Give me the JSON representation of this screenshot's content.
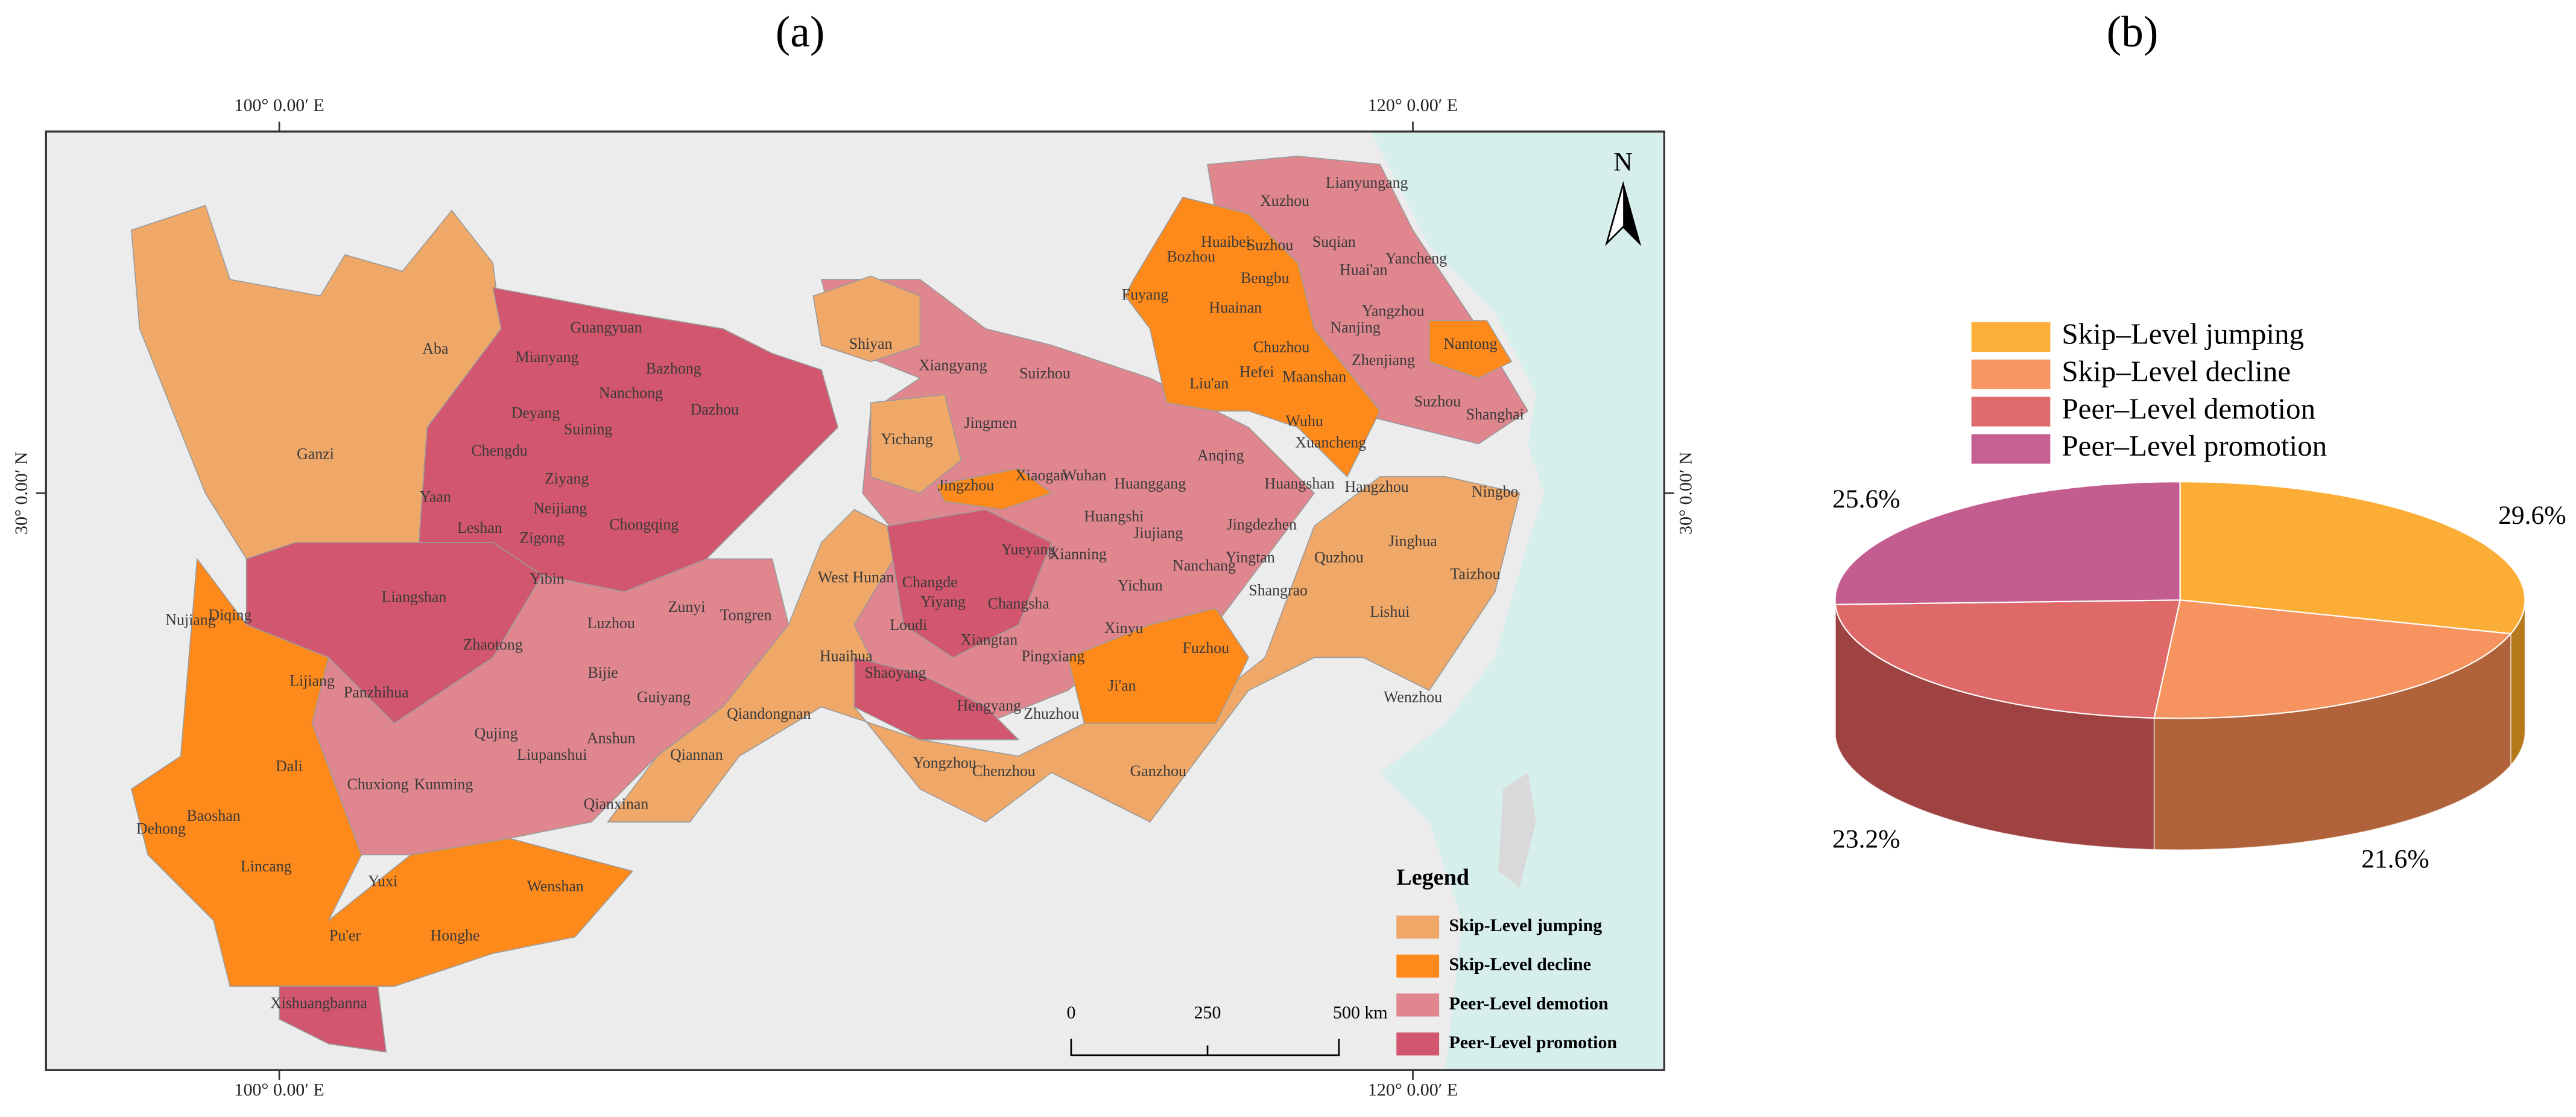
{
  "panels": {
    "a": {
      "label": "(a)",
      "lon_labels": [
        "100° 0.00′ E",
        "120° 0.00′ E"
      ],
      "lat_label": "30° 0.00′ N",
      "north": "N",
      "cities": [
        "Aba",
        "Ganzi",
        "Guangyuan",
        "Mianyang",
        "Bazhong",
        "Dazhou",
        "Nanchong",
        "Deyang",
        "Suining",
        "Chengdu",
        "Ziyang",
        "Yaan",
        "Neijiang",
        "Leshan",
        "Chongqing",
        "Zigong",
        "Yibin",
        "Liangshan",
        "Luzhou",
        "Zunyi",
        "Tongren",
        "Zhaotong",
        "Bijie",
        "Guiyang",
        "Anshun",
        "Qiannan",
        "Qiandongnan",
        "Qujing",
        "Liupanshui",
        "Kunming",
        "Chuxiong",
        "Panzhihua",
        "Lijiang",
        "Diqing",
        "Nujiang",
        "Dali",
        "Baoshan",
        "Dehong",
        "Lincang",
        "Yuxi",
        "Pu'er",
        "Honghe",
        "Wenshan",
        "Qianxinan",
        "Xishuangbanna",
        "Shiyan",
        "Xiangyang",
        "Suizhou",
        "Jingmen",
        "Yichang",
        "Jingzhou",
        "Xiaogan",
        "Wuhan",
        "Huanggang",
        "Huangshi",
        "Anqing",
        "Xianning",
        "Yueyang",
        "Changde",
        "West Hunan",
        "Yiyang",
        "Changsha",
        "Loudi",
        "Huaihua",
        "Xiangtan",
        "Shaoyang",
        "Hengyang",
        "Pingxiang",
        "Zhuzhou",
        "Yongzhou",
        "Chenzhou",
        "Ganzhou",
        "Ji'an",
        "Xinyu",
        "Yichun",
        "Jiujiang",
        "Nanchang",
        "Fuzhou",
        "Yingtan",
        "Jingdezhen",
        "Shangrao",
        "Huangshan",
        "Quzhou",
        "Hangzhou",
        "Jinghua",
        "Lishui",
        "Wenzhou",
        "Taizhou",
        "Ningbo",
        "Xuancheng",
        "Wuhu",
        "Maanshan",
        "Chuzhou",
        "Hefei",
        "Liu'an",
        "Huainan",
        "Bengbu",
        "Fuyang",
        "Bozhou",
        "Huaibei",
        "Suzhou",
        "Xuzhou",
        "Lianyungang",
        "Suqian",
        "Huai'an",
        "Yancheng",
        "Yangzhou",
        "Nanjing",
        "Zhenjiang",
        "Nantong",
        "Suzhou",
        "Shanghai"
      ],
      "legend": {
        "title": "Legend",
        "items": [
          {
            "name": "Skip-Level jumping",
            "color": "#f0a868"
          },
          {
            "name": "Skip-Level decline",
            "color": "#ff8a1c"
          },
          {
            "name": "Peer-Level demotion",
            "color": "#e0868e"
          },
          {
            "name": "Peer-Level promotion",
            "color": "#d2566e"
          }
        ]
      },
      "scale_bar": [
        "0",
        "250",
        "500 km"
      ]
    },
    "b": {
      "label": "(b)"
    }
  },
  "chart_data": {
    "type": "pie",
    "labels": [
      "Skip–Level jumping",
      "Skip–Level decline",
      "Peer–Level demotion",
      "Peer–Level promotion"
    ],
    "values": [
      29.6,
      21.6,
      23.2,
      25.6
    ],
    "value_labels": [
      "29.6%",
      "21.6%",
      "23.2%",
      "25.6%"
    ],
    "colors": [
      "#fba624",
      "#f58a50",
      "#dc5c5c",
      "#bf4f86"
    ]
  }
}
